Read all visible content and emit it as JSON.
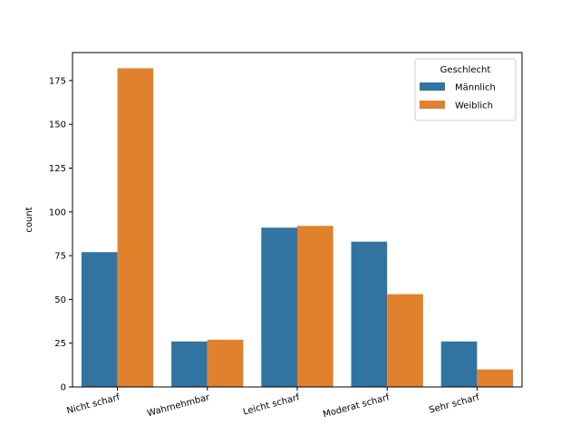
{
  "chart_data": {
    "type": "bar",
    "categories": [
      "Nicht scharf",
      "Wahrnehmbar",
      "Leicht scharf",
      "Moderat scharf",
      "Sehr scharf"
    ],
    "series": [
      {
        "name": "Männlich",
        "values": [
          77,
          26,
          91,
          83,
          26
        ],
        "color": "#3274a1"
      },
      {
        "name": "Weiblich",
        "values": [
          182,
          27,
          92,
          53,
          10
        ],
        "color": "#e1812c"
      }
    ],
    "xlabel": "",
    "ylabel": "count",
    "ylim": [
      0,
      191
    ],
    "yticks": [
      0,
      25,
      50,
      75,
      100,
      125,
      150,
      175
    ],
    "legend": {
      "title": "Geschlecht",
      "placement": "top-right"
    },
    "grid": false
  }
}
